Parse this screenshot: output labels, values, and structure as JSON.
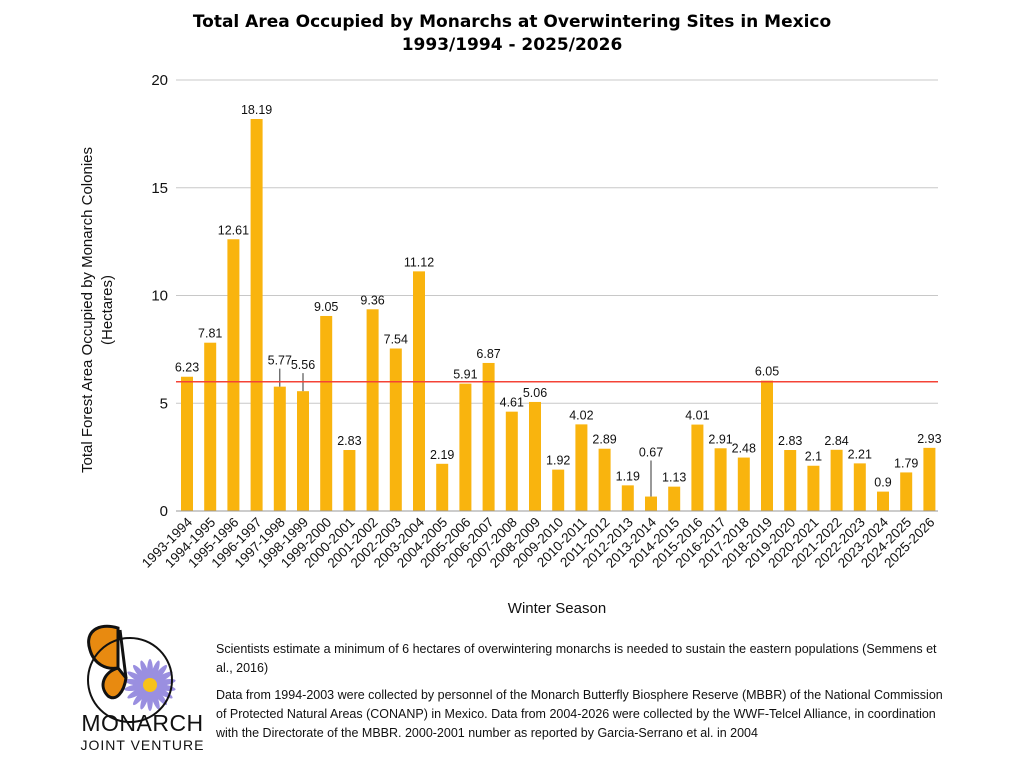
{
  "chart_data": {
    "type": "bar",
    "title": "Total Area Occupied by Monarchs at Overwintering Sites in Mexico",
    "subtitle": "1993/1994 - 2025/2026",
    "xlabel": "Winter Season",
    "ylabel": "Total Forest Area Occupied by Monarch Colonies (Hectares)",
    "ylabel_lines": [
      "Total Forest Area Occupied by Monarch Colonies",
      "(Hectares)"
    ],
    "ylim": [
      0,
      20
    ],
    "yticks": [
      0,
      5,
      10,
      15,
      20
    ],
    "grid": true,
    "reference_line": {
      "value": 6,
      "color": "#f44336"
    },
    "bar_color": "#F9B40E",
    "categories": [
      "1993-1994",
      "1994-1995",
      "1995-1996",
      "1996-1997",
      "1997-1998",
      "1998-1999",
      "1999-2000",
      "2000-2001",
      "2001-2002",
      "2002-2003",
      "2003-2004",
      "2004-2005",
      "2005-2006",
      "2006-2007",
      "2007-2008",
      "2008-2009",
      "2009-2010",
      "2010-2011",
      "2011-2012",
      "2012-2013",
      "2013-2014",
      "2014-2015",
      "2015-2016",
      "2016-2017",
      "2017-2018",
      "2018-2019",
      "2019-2020",
      "2020-2021",
      "2021-2022",
      "2022-2023",
      "2023-2024",
      "2024-2025",
      "2025-2026"
    ],
    "values": [
      6.23,
      7.81,
      12.61,
      18.19,
      5.77,
      5.56,
      9.05,
      2.83,
      9.36,
      7.54,
      11.12,
      2.19,
      5.91,
      6.87,
      4.61,
      5.06,
      1.92,
      4.02,
      2.89,
      1.19,
      0.67,
      1.13,
      4.01,
      2.91,
      2.48,
      6.05,
      2.83,
      2.1,
      2.84,
      2.21,
      0.9,
      1.79,
      2.93
    ]
  },
  "notes": {
    "threshold": "Scientists estimate a minimum of 6 hectares of overwintering monarchs is needed to sustain the eastern populations (Semmens et al., 2016)",
    "sources": "Data from 1994-2003 were collected by personnel of the Monarch Butterfly Biosphere Reserve (MBBR) of the National Commission of Protected Natural Areas (CONANP) in Mexico. Data from 2004-2026 were collected by the WWF-Telcel Alliance, in coordination with the Directorate of the MBBR. 2000-2001 number as reported by Garcia-Serrano et al. in 2004"
  },
  "logo": {
    "line1": "MONARCH",
    "line2": "JOINT VENTURE"
  }
}
